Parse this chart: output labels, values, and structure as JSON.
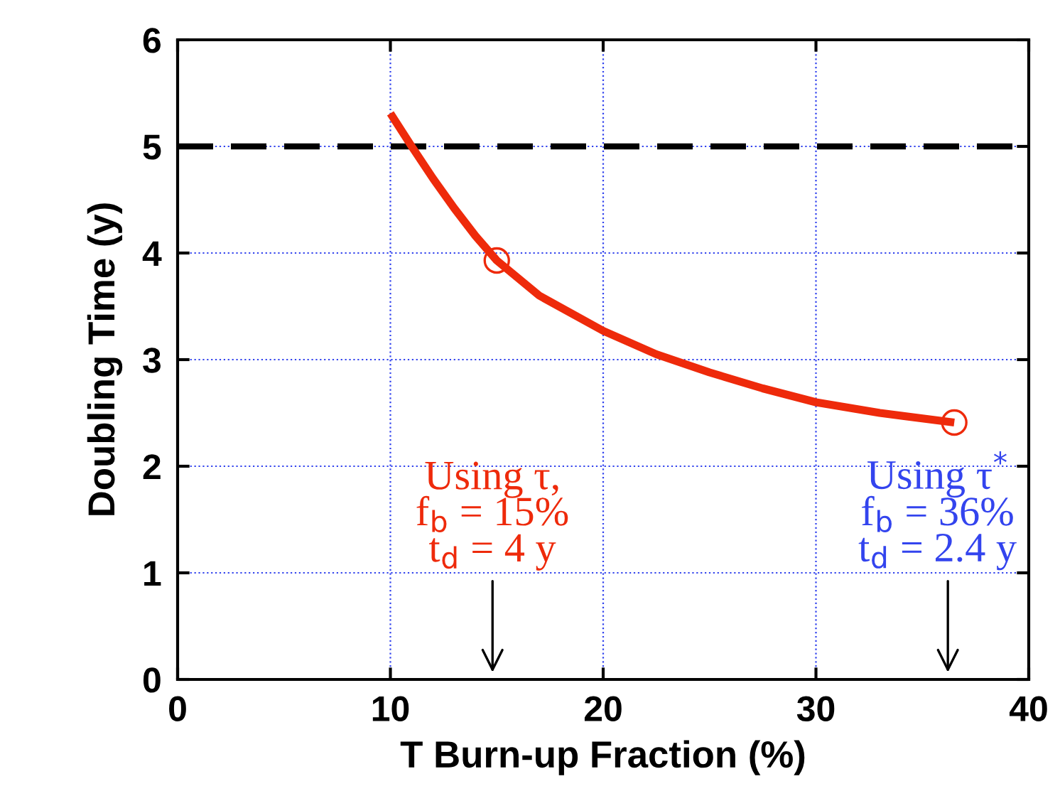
{
  "chart_data": {
    "type": "line",
    "xlabel": "T Burn-up Fraction (%)",
    "ylabel": "Doubling Time (y)",
    "xlim": [
      0,
      40
    ],
    "ylim": [
      0,
      6
    ],
    "xticks": [
      0,
      10,
      20,
      30,
      40
    ],
    "yticks": [
      0,
      1,
      2,
      3,
      4,
      5,
      6
    ],
    "grid": true,
    "series": [
      {
        "color": "#ee2a0b",
        "marker": "none",
        "x": [
          10,
          11,
          12,
          13,
          14,
          15,
          17,
          20,
          22.5,
          25,
          27.5,
          30,
          33,
          36.5
        ],
        "values": [
          5.31,
          5.0,
          4.7,
          4.42,
          4.16,
          3.93,
          3.6,
          3.27,
          3.05,
          2.88,
          2.73,
          2.6,
          2.5,
          2.41
        ]
      },
      {
        "type": "scatter",
        "color": "#ee2a0b",
        "marker": "circle",
        "x": [
          15,
          36.5
        ],
        "values": [
          3.93,
          2.41
        ]
      }
    ],
    "ref_lines": [
      {
        "axis": "y",
        "value": 5,
        "color": "#000000",
        "line_style": "dashed"
      }
    ],
    "annotations": [
      "Using τ,\nf$_{b}$ = 15%\nt$_{d}$ = 4 y",
      "Using τ$^{*}$\nf$_{b}$ = 36%\nt$_{d}$ = 2.4 y"
    ]
  }
}
